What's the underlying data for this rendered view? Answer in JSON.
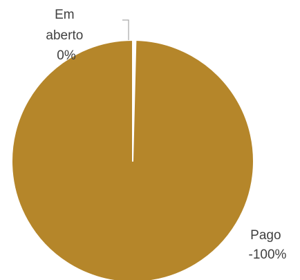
{
  "chart_data": {
    "type": "pie",
    "title": "",
    "slices": [
      {
        "name": "Em aberto",
        "value": 0.4,
        "label_lines": [
          "Em",
          "aberto",
          "0%"
        ],
        "color": "#ffffff"
      },
      {
        "name": "Pago",
        "value": 99.6,
        "label_lines": [
          "Pago",
          "-100%"
        ],
        "color": "#B5862A"
      }
    ],
    "legend": "none",
    "leader_line_color": "#A6A6A6"
  }
}
